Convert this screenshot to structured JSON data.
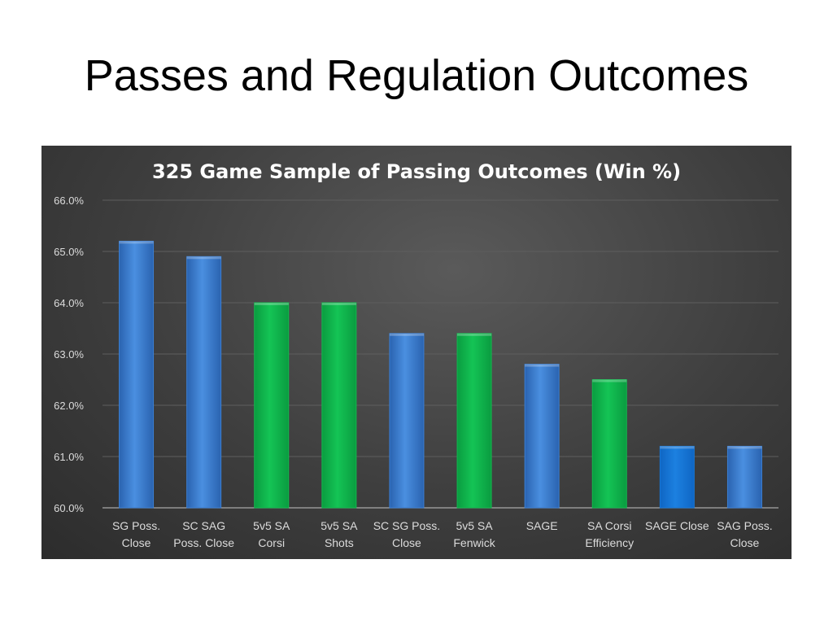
{
  "slide": {
    "title": "Passes and Regulation Outcomes"
  },
  "colors": {
    "blue": "#3b7fd4",
    "blue_bright": "#1877d6",
    "green": "#12b94e",
    "panel_bg": "#3e3e3e"
  },
  "chart_data": {
    "type": "bar",
    "title": "325 Game Sample of Passing Outcomes (Win %)",
    "xlabel": "",
    "ylabel": "",
    "ylim": [
      60.0,
      66.0
    ],
    "yticks": [
      "60.0%",
      "61.0%",
      "62.0%",
      "63.0%",
      "64.0%",
      "65.0%",
      "66.0%"
    ],
    "grid": true,
    "categories": [
      [
        "SG Poss.",
        "Close"
      ],
      [
        "SC SAG",
        "Poss. Close"
      ],
      [
        "5v5 SA",
        "Corsi"
      ],
      [
        "5v5 SA",
        "Shots"
      ],
      [
        "SC SG Poss.",
        "Close"
      ],
      [
        "5v5 SA",
        "Fenwick"
      ],
      [
        "SAGE"
      ],
      [
        "SA Corsi",
        "Efficiency"
      ],
      [
        "SAGE Close"
      ],
      [
        "SAG Poss.",
        "Close"
      ]
    ],
    "values": [
      65.2,
      64.9,
      64.0,
      64.0,
      63.4,
      63.4,
      62.8,
      62.5,
      61.2,
      61.2
    ],
    "bar_colors": [
      "blue",
      "blue",
      "green",
      "green",
      "blue",
      "green",
      "blue",
      "green",
      "blue_bright",
      "blue"
    ]
  }
}
